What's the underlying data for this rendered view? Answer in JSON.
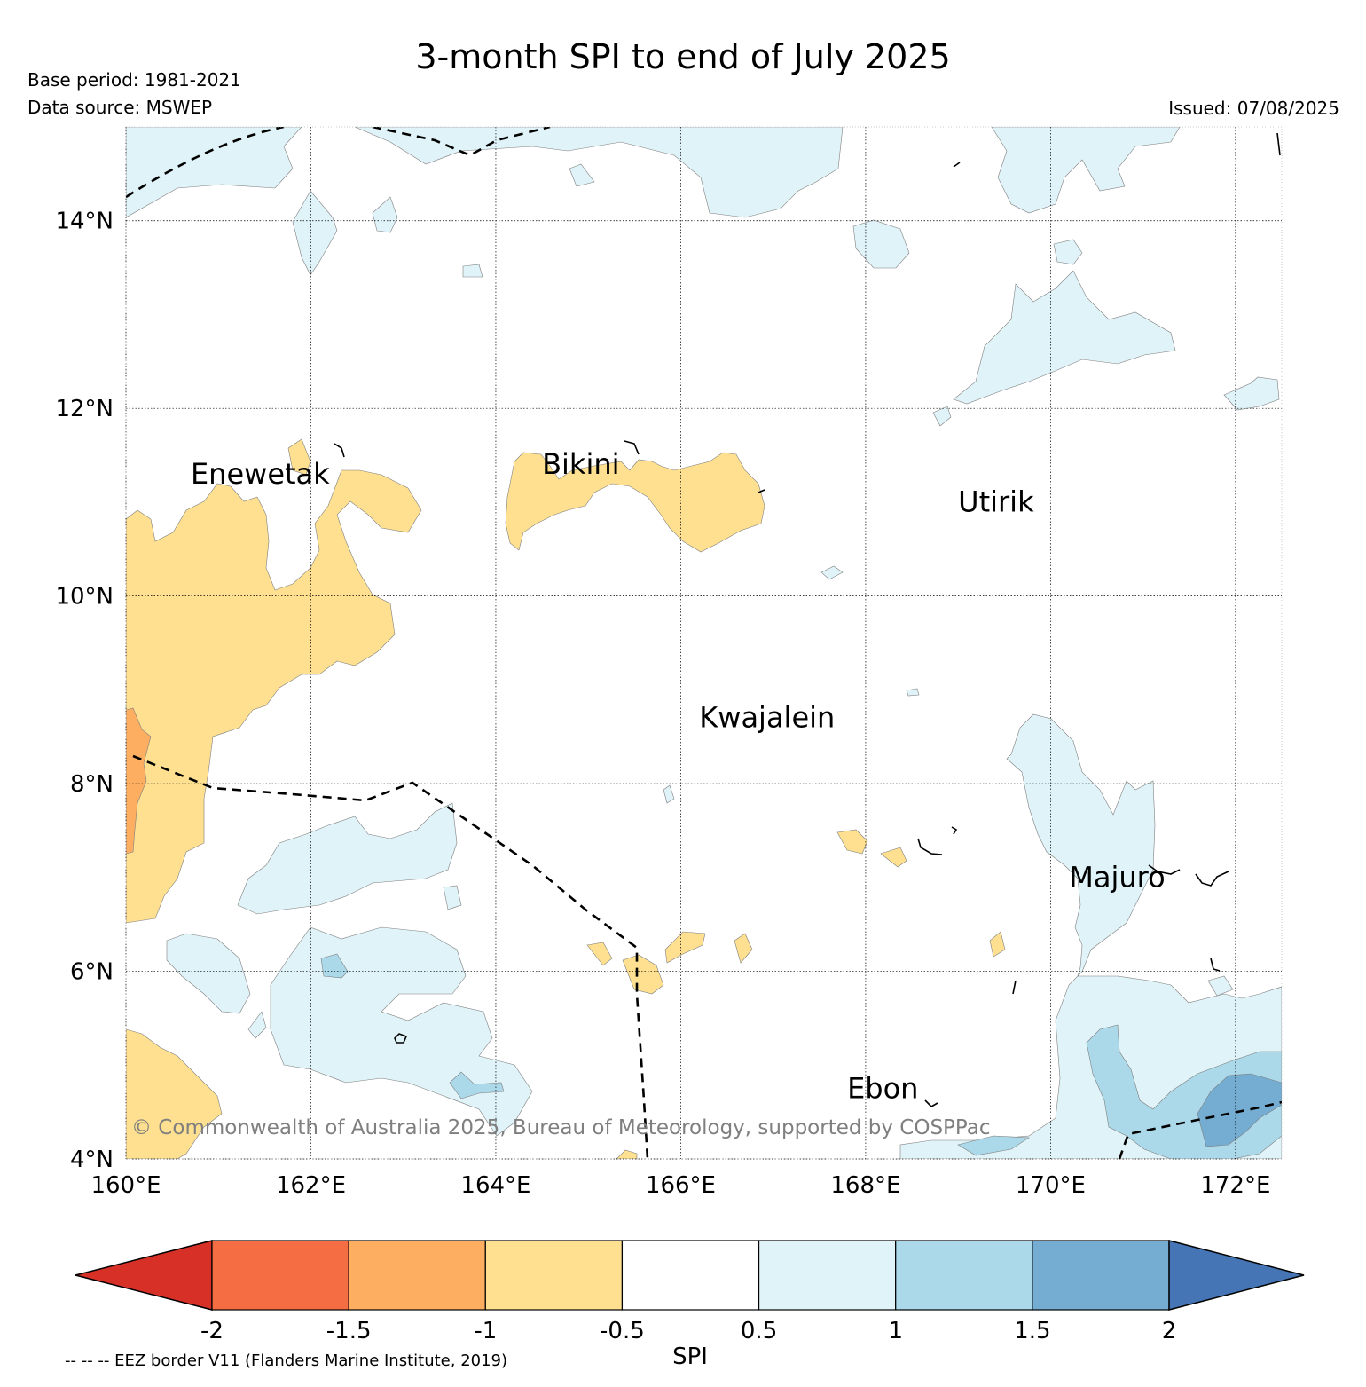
{
  "header": {
    "title": "3-month SPI to end of July 2025",
    "base_period": "Base period: 1981-2021",
    "data_source": "Data source: MSWEP",
    "issued": "Issued: 07/08/2025"
  },
  "map": {
    "lon_range": [
      160,
      172.5
    ],
    "lat_range": [
      4,
      15
    ],
    "lon_ticks": [
      {
        "value": 160,
        "label": "160°E"
      },
      {
        "value": 162,
        "label": "162°E"
      },
      {
        "value": 164,
        "label": "164°E"
      },
      {
        "value": 166,
        "label": "166°E"
      },
      {
        "value": 168,
        "label": "168°E"
      },
      {
        "value": 170,
        "label": "170°E"
      },
      {
        "value": 172,
        "label": "172°E"
      }
    ],
    "lat_ticks": [
      {
        "value": 4,
        "label": "4°N"
      },
      {
        "value": 6,
        "label": "6°N"
      },
      {
        "value": 8,
        "label": "8°N"
      },
      {
        "value": 10,
        "label": "10°N"
      },
      {
        "value": 12,
        "label": "12°N"
      },
      {
        "value": 14,
        "label": "14°N"
      }
    ],
    "places": [
      {
        "name": "Enewetak",
        "lon": 160.7,
        "lat": 11.2
      },
      {
        "name": "Bikini",
        "lon": 164.5,
        "lat": 11.3
      },
      {
        "name": "Utirik",
        "lon": 169.0,
        "lat": 10.9
      },
      {
        "name": "Kwajalein",
        "lon": 166.2,
        "lat": 8.6
      },
      {
        "name": "Majuro",
        "lon": 170.2,
        "lat": 6.9
      },
      {
        "name": "Ebon",
        "lon": 167.8,
        "lat": 4.65
      }
    ],
    "copyright": "© Commonwealth of Australia 2025, Bureau of Meteorology, supported by COSPPac"
  },
  "colorbar": {
    "label": "SPI",
    "ticks": [
      "-2",
      "-1.5",
      "-1",
      "-0.5",
      "0.5",
      "1",
      "1.5",
      "2"
    ],
    "colors": {
      "below_-2": "#d73027",
      "-2_to_-1.5": "#f46d43",
      "-1.5_to_-1": "#fdae61",
      "-1_to_-0.5": "#fee090",
      "-0.5_to_0.5": "#ffffff",
      "0.5_to_1": "#e0f3f8",
      "1_to_1.5": "#abd9e9",
      "1.5_to_2": "#74add1",
      "above_2": "#4575b4"
    }
  },
  "footer": {
    "eez_note": "-- -- -- EEZ border V11 (Flanders Marine Institute, 2019)"
  }
}
